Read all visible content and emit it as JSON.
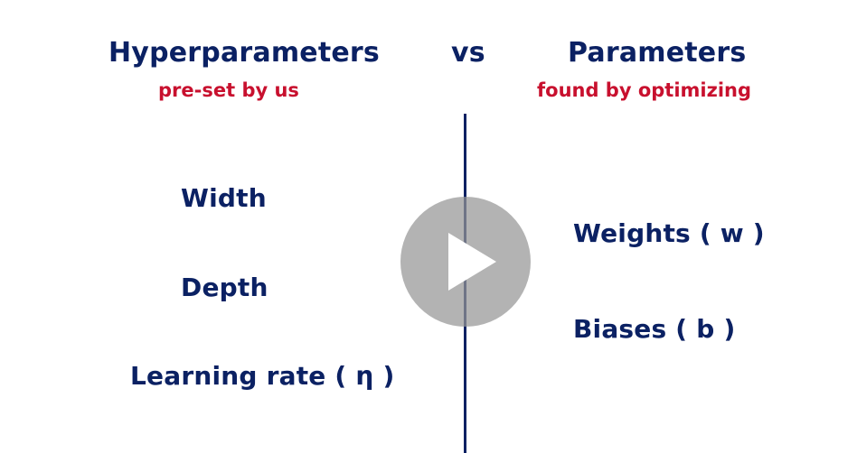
{
  "headers": {
    "left_title": "Hyperparameters",
    "left_subtitle": "pre-set by us",
    "middle": "vs",
    "right_title": "Parameters",
    "right_subtitle": "found by optimizing"
  },
  "hyperparameters": [
    "Width",
    "Depth",
    "Learning rate ( η )"
  ],
  "parameters": [
    "Weights ( w )",
    "Biases ( b )"
  ],
  "colors": {
    "text": "#0b2163",
    "accent": "#c8102e",
    "overlay": "#969696"
  },
  "overlay_icon": "play-icon"
}
